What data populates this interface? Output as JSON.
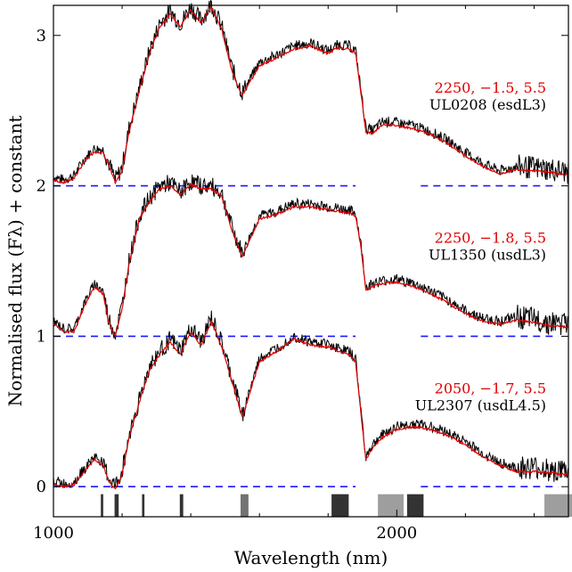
{
  "chart_data": {
    "type": "line",
    "xlabel": "Wavelength (nm)",
    "ylabel": "Normalised flux  (Fλ) + constant",
    "xlim": [
      1000,
      2500
    ],
    "ylim": [
      -0.2,
      3.2
    ],
    "xticks": [
      1000,
      2000
    ],
    "xtick_labels": [
      "1000",
      "2000"
    ],
    "yticks": [
      0,
      1,
      2,
      3
    ],
    "ytick_labels": [
      "0",
      "1",
      "2",
      "3"
    ],
    "colors": {
      "observed": "#000000",
      "model": "#e00000",
      "baseline": "#1a1aff"
    },
    "telluric_bands": [
      {
        "x0": 1138,
        "x1": 1145,
        "shade": 0.8
      },
      {
        "x0": 1178,
        "x1": 1190,
        "shade": 0.8
      },
      {
        "x0": 1258,
        "x1": 1265,
        "shade": 0.8
      },
      {
        "x0": 1368,
        "x1": 1378,
        "shade": 0.8
      },
      {
        "x0": 1545,
        "x1": 1568,
        "shade": 0.55
      },
      {
        "x0": 1810,
        "x1": 1860,
        "shade": 0.8
      },
      {
        "x0": 1945,
        "x1": 2020,
        "shade": 0.38
      },
      {
        "x0": 2030,
        "x1": 2078,
        "shade": 0.8
      },
      {
        "x0": 2430,
        "x1": 2520,
        "shade": 0.38
      },
      {
        "x0": 2530,
        "x1": 2578,
        "shade": 0.8
      }
    ],
    "spectra": [
      {
        "name": "UL0208 (esdL3)",
        "model": "2250, −1.5, 5.5",
        "offset": 2,
        "baseline_segments": [
          [
            1000,
            1880
          ],
          [
            2070,
            2470
          ]
        ],
        "points": [
          [
            1000,
            0.06
          ],
          [
            1030,
            0.04
          ],
          [
            1060,
            0.07
          ],
          [
            1090,
            0.18
          ],
          [
            1120,
            0.25
          ],
          [
            1145,
            0.24
          ],
          [
            1160,
            0.16
          ],
          [
            1180,
            0.04
          ],
          [
            1200,
            0.12
          ],
          [
            1220,
            0.38
          ],
          [
            1250,
            0.65
          ],
          [
            1280,
            0.9
          ],
          [
            1310,
            1.08
          ],
          [
            1340,
            1.16
          ],
          [
            1370,
            1.08
          ],
          [
            1400,
            1.19
          ],
          [
            1430,
            1.1
          ],
          [
            1460,
            1.21
          ],
          [
            1490,
            1.06
          ],
          [
            1520,
            0.78
          ],
          [
            1550,
            0.62
          ],
          [
            1600,
            0.82
          ],
          [
            1650,
            0.87
          ],
          [
            1700,
            0.93
          ],
          [
            1750,
            0.95
          ],
          [
            1800,
            0.9
          ],
          [
            1830,
            0.94
          ],
          [
            1860,
            0.93
          ],
          [
            1880,
            0.9
          ],
          [
            1895,
            0.65
          ],
          [
            1910,
            0.38
          ],
          [
            1930,
            0.37
          ],
          [
            1960,
            0.43
          ],
          [
            2000,
            0.42
          ],
          [
            2050,
            0.4
          ],
          [
            2100,
            0.36
          ],
          [
            2150,
            0.3
          ],
          [
            2200,
            0.22
          ],
          [
            2250,
            0.15
          ],
          [
            2300,
            0.1
          ],
          [
            2350,
            0.13
          ],
          [
            2400,
            0.12
          ],
          [
            2450,
            0.11
          ],
          [
            2500,
            0.09
          ]
        ]
      },
      {
        "name": "UL1350 (usdL3)",
        "model": "2250, −1.8, 5.5",
        "offset": 1,
        "baseline_segments": [
          [
            1000,
            1880
          ],
          [
            2070,
            2470
          ]
        ],
        "points": [
          [
            1000,
            0.1
          ],
          [
            1030,
            0.05
          ],
          [
            1060,
            0.05
          ],
          [
            1090,
            0.22
          ],
          [
            1120,
            0.35
          ],
          [
            1145,
            0.3
          ],
          [
            1160,
            0.12
          ],
          [
            1180,
            0.02
          ],
          [
            1200,
            0.2
          ],
          [
            1220,
            0.5
          ],
          [
            1250,
            0.8
          ],
          [
            1280,
            0.92
          ],
          [
            1310,
            1.0
          ],
          [
            1340,
            1.02
          ],
          [
            1370,
            0.96
          ],
          [
            1400,
            1.03
          ],
          [
            1430,
            1.0
          ],
          [
            1460,
            1.0
          ],
          [
            1490,
            0.95
          ],
          [
            1520,
            0.72
          ],
          [
            1550,
            0.55
          ],
          [
            1600,
            0.8
          ],
          [
            1650,
            0.83
          ],
          [
            1700,
            0.88
          ],
          [
            1750,
            0.88
          ],
          [
            1800,
            0.86
          ],
          [
            1830,
            0.85
          ],
          [
            1860,
            0.84
          ],
          [
            1880,
            0.82
          ],
          [
            1895,
            0.62
          ],
          [
            1910,
            0.33
          ],
          [
            1930,
            0.35
          ],
          [
            1960,
            0.37
          ],
          [
            2000,
            0.38
          ],
          [
            2050,
            0.35
          ],
          [
            2100,
            0.3
          ],
          [
            2150,
            0.24
          ],
          [
            2200,
            0.17
          ],
          [
            2250,
            0.12
          ],
          [
            2300,
            0.1
          ],
          [
            2350,
            0.13
          ],
          [
            2400,
            0.11
          ],
          [
            2450,
            0.09
          ],
          [
            2500,
            0.08
          ]
        ]
      },
      {
        "name": "UL2307 (usdL4.5)",
        "model": "2050, −1.7, 5.5",
        "offset": 0,
        "baseline_segments": [
          [
            1000,
            1880
          ],
          [
            2070,
            2470
          ]
        ],
        "points": [
          [
            1000,
            0.04
          ],
          [
            1030,
            0.02
          ],
          [
            1060,
            0.03
          ],
          [
            1090,
            0.12
          ],
          [
            1120,
            0.2
          ],
          [
            1145,
            0.16
          ],
          [
            1160,
            0.06
          ],
          [
            1180,
            0.0
          ],
          [
            1200,
            0.1
          ],
          [
            1220,
            0.34
          ],
          [
            1250,
            0.58
          ],
          [
            1280,
            0.8
          ],
          [
            1310,
            0.9
          ],
          [
            1340,
            0.98
          ],
          [
            1370,
            0.9
          ],
          [
            1400,
            1.05
          ],
          [
            1430,
            0.96
          ],
          [
            1460,
            1.12
          ],
          [
            1490,
            0.95
          ],
          [
            1520,
            0.72
          ],
          [
            1550,
            0.48
          ],
          [
            1600,
            0.85
          ],
          [
            1650,
            0.92
          ],
          [
            1700,
            1.0
          ],
          [
            1750,
            0.96
          ],
          [
            1800,
            0.95
          ],
          [
            1830,
            0.92
          ],
          [
            1860,
            0.9
          ],
          [
            1880,
            0.85
          ],
          [
            1895,
            0.52
          ],
          [
            1910,
            0.2
          ],
          [
            1930,
            0.28
          ],
          [
            1960,
            0.35
          ],
          [
            2000,
            0.4
          ],
          [
            2050,
            0.42
          ],
          [
            2100,
            0.4
          ],
          [
            2150,
            0.36
          ],
          [
            2200,
            0.3
          ],
          [
            2250,
            0.22
          ],
          [
            2300,
            0.16
          ],
          [
            2350,
            0.12
          ],
          [
            2400,
            0.12
          ],
          [
            2450,
            0.11
          ],
          [
            2500,
            0.1
          ]
        ]
      }
    ]
  }
}
